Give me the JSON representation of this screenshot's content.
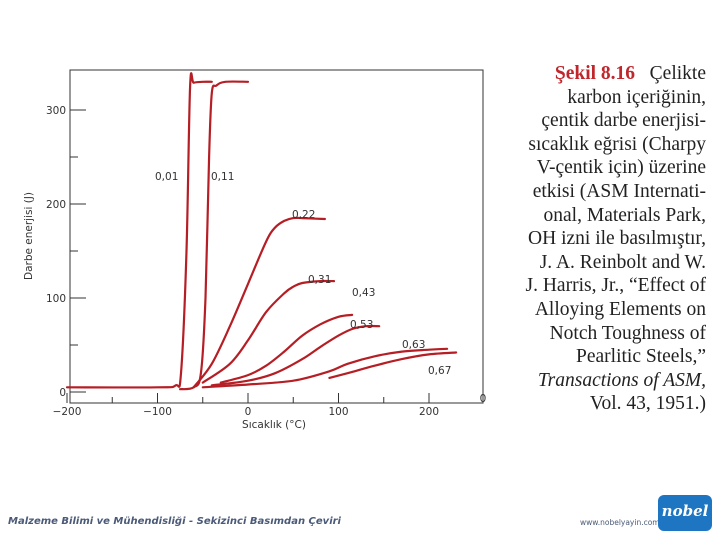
{
  "chart_data": {
    "type": "line",
    "title": "",
    "xlabel": "Sıcaklık (°C)",
    "ylabel": "Darbe enerjisi (J)",
    "xlim": [
      -200,
      240
    ],
    "ylim": [
      0,
      330
    ],
    "x_ticks": [
      -200,
      -100,
      0,
      100,
      200
    ],
    "x_tick_labels": [
      "−200",
      "−100",
      "0",
      "100",
      "200"
    ],
    "y_ticks": [
      0,
      100,
      200,
      300
    ],
    "y_tick_labels": [
      "0",
      "100",
      "200",
      "300"
    ],
    "extra_x_label": "0",
    "grid": false,
    "color": "#b51e24",
    "series": [
      {
        "name": "0,01",
        "x": [
          -200,
          -100,
          -80,
          -74,
          -68,
          -64,
          -60,
          -50,
          -40
        ],
        "y": [
          5,
          5,
          7,
          20,
          150,
          325,
          329,
          330,
          330
        ]
      },
      {
        "name": "0,11",
        "x": [
          -75,
          -60,
          -52,
          -47,
          -43,
          -40,
          -35,
          -25,
          0
        ],
        "y": [
          3,
          5,
          20,
          100,
          250,
          318,
          326,
          330,
          330
        ]
      },
      {
        "name": "0,22",
        "x": [
          -60,
          -40,
          -20,
          0,
          20,
          30,
          40,
          50,
          60,
          85
        ],
        "y": [
          5,
          30,
          70,
          115,
          160,
          175,
          182,
          185,
          185,
          184
        ]
      },
      {
        "name": "0,31",
        "x": [
          -50,
          -20,
          0,
          20,
          40,
          50,
          60,
          80,
          95
        ],
        "y": [
          10,
          30,
          55,
          85,
          105,
          112,
          116,
          118,
          118
        ]
      },
      {
        "name": "0,43",
        "x": [
          -30,
          0,
          20,
          40,
          60,
          80,
          100,
          115
        ],
        "y": [
          10,
          18,
          28,
          43,
          60,
          72,
          80,
          82
        ]
      },
      {
        "name": "0,53",
        "x": [
          -40,
          0,
          30,
          60,
          80,
          100,
          115,
          130,
          145
        ],
        "y": [
          7,
          12,
          20,
          35,
          48,
          60,
          67,
          70,
          70
        ]
      },
      {
        "name": "0,63",
        "x": [
          -50,
          0,
          50,
          90,
          110,
          140,
          170,
          200,
          220
        ],
        "y": [
          5,
          8,
          12,
          22,
          30,
          38,
          43,
          45,
          46
        ]
      },
      {
        "name": "0,67",
        "x": [
          90,
          110,
          140,
          170,
          200,
          230
        ],
        "y": [
          15,
          20,
          28,
          35,
          40,
          42
        ]
      }
    ]
  },
  "caption": {
    "figure_number": "Şekil 8.16",
    "line1_rest": "Çelikte",
    "lines": [
      "karbon içeriğinin,",
      "çentik darbe enerjisi-",
      "sıcaklık eğrisi (Charpy",
      "V-çentik için) üzerine",
      "etkisi (ASM Internati-",
      "onal, Materials Park,",
      "OH izni ile basılmıştır,",
      "J. A. Reinbolt and W.",
      "J. Harris, Jr., “Effect of",
      "Alloying Elements on",
      "Notch Toughness of",
      "Pearlitic Steels,”"
    ],
    "journal": "Transactions of ASM,",
    "volume": "Vol. 43, 1951.)"
  },
  "footer": {
    "book_title": "Malzeme Bilimi ve Mühendisliği - Sekizinci Basımdan Çeviri",
    "url": "www.nobelyayin.com",
    "logo_text": "nobel"
  }
}
